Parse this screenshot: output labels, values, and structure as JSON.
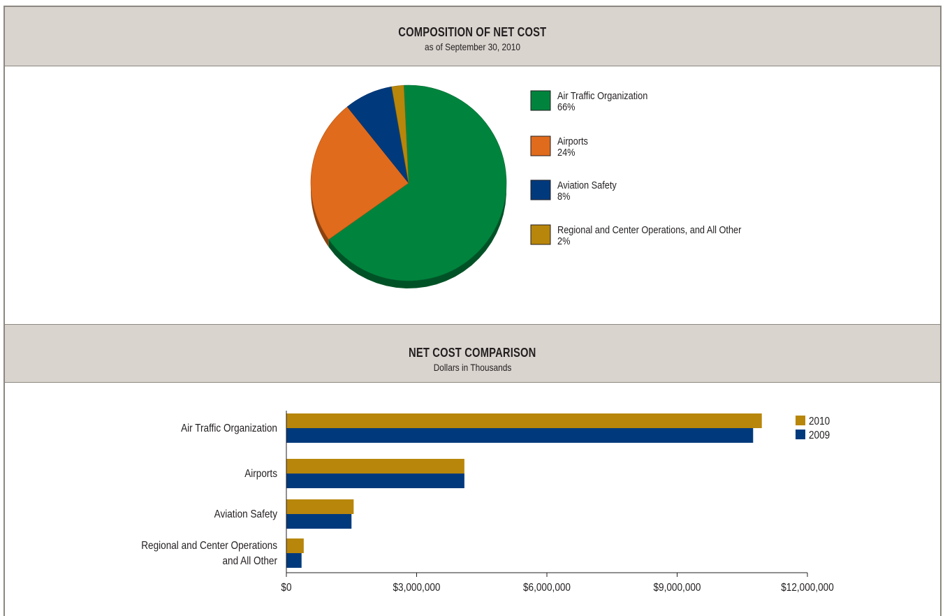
{
  "chart_data": [
    {
      "type": "pie",
      "title": "COMPOSITION OF NET COST",
      "subtitle": "as of September 30, 2010",
      "slices": [
        {
          "name": "Air Traffic Organization",
          "label": "66%",
          "value": 66,
          "color": "#00843d"
        },
        {
          "name": "Airports",
          "label": "24%",
          "value": 24,
          "color": "#e06b1c"
        },
        {
          "name": "Aviation Safety",
          "label": "8%",
          "value": 8,
          "color": "#003a7d"
        },
        {
          "name": "Regional and Center Operations, and All Other",
          "label": "2%",
          "value": 2,
          "color": "#b8860b"
        }
      ],
      "legend_position": "right"
    },
    {
      "type": "bar",
      "orientation": "horizontal",
      "title": "NET COST COMPARISON",
      "subtitle": "Dollars in Thousands",
      "categories": [
        "Air Traffic Organization",
        "Airports",
        "Aviation Safety",
        "Regional and Center Operations and All Other"
      ],
      "category_lines": [
        [
          "Air Traffic Organization"
        ],
        [
          "Airports"
        ],
        [
          "Aviation Safety"
        ],
        [
          "Regional and Center Operations",
          "and All Other"
        ]
      ],
      "series": [
        {
          "name": "2010",
          "color": "#b8860b",
          "values": [
            10950000,
            4100000,
            1550000,
            400000
          ]
        },
        {
          "name": "2009",
          "color": "#003a7d",
          "values": [
            10750000,
            4100000,
            1500000,
            350000
          ]
        }
      ],
      "xlim": [
        0,
        12000000
      ],
      "xticks": [
        0,
        3000000,
        6000000,
        9000000,
        12000000
      ],
      "xtick_labels": [
        "$0",
        "$3,000,000",
        "$6,000,000",
        "$9,000,000",
        "$12,000,000"
      ],
      "legend_position": "top-right",
      "grid": false
    }
  ]
}
